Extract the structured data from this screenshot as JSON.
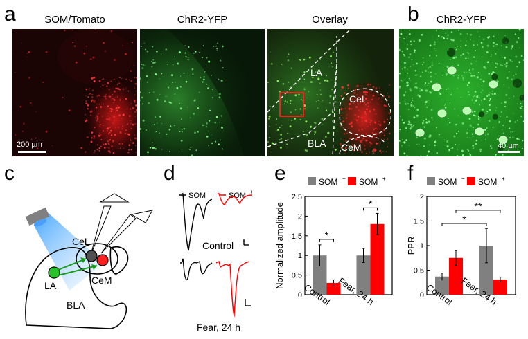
{
  "panel_letters": [
    "a",
    "b",
    "c",
    "d",
    "e",
    "f"
  ],
  "panel_a": {
    "titles": [
      "SOM/Tomato",
      "ChR2-YFP",
      "Overlay"
    ],
    "scalebar": "200 µm",
    "regions": [
      "LA",
      "CeL",
      "BLA",
      "CeM"
    ]
  },
  "panel_b": {
    "title": "ChR2-YFP",
    "scalebar": "40 µm"
  },
  "panel_c": {
    "labels": [
      "CeL",
      "LA",
      "CeM",
      "BLA"
    ]
  },
  "panel_d": {
    "legend_minus": "SOM",
    "legend_plus": "SOM",
    "conditions": [
      "Control",
      "Fear, 24 h"
    ]
  },
  "chart_data": [
    {
      "type": "bar",
      "panel": "e",
      "categories": [
        "Control",
        "Fear, 24 h"
      ],
      "series": [
        {
          "name": "SOM−",
          "values": [
            1.0,
            1.0
          ],
          "errors": [
            0.27,
            0.18
          ],
          "color": "#808080"
        },
        {
          "name": "SOM+",
          "values": [
            0.3,
            1.8
          ],
          "errors": [
            0.08,
            0.27
          ],
          "color": "#ff0000"
        }
      ],
      "ylabel": "Normalized amplitude",
      "ylim": [
        0,
        2.5
      ],
      "yticks": [
        0,
        0.5,
        1,
        1.5,
        2,
        2.5
      ],
      "significance": [
        "*",
        "*"
      ],
      "legend": "top"
    },
    {
      "type": "bar",
      "panel": "f",
      "categories": [
        "Control",
        "Fear, 24 h"
      ],
      "series": [
        {
          "name": "SOM−",
          "values": [
            0.37,
            1.0
          ],
          "errors": [
            0.07,
            0.35
          ],
          "color": "#808080"
        },
        {
          "name": "SOM+",
          "values": [
            0.75,
            0.31
          ],
          "errors": [
            0.15,
            0.05
          ],
          "color": "#ff0000"
        }
      ],
      "ylabel": "PPR",
      "ylim": [
        0,
        2
      ],
      "yticks": [
        0,
        0.5,
        1,
        1.5,
        2
      ],
      "significance": [
        "*",
        "**"
      ],
      "legend": "top"
    }
  ]
}
